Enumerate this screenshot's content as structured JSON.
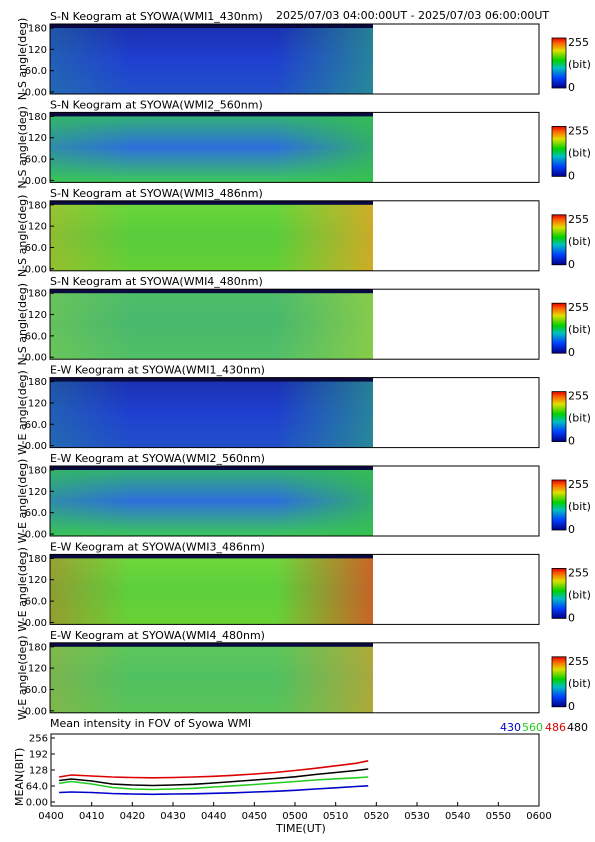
{
  "header": {
    "time_range": "2025/07/03 04:00:00UT - 2025/07/03 06:00:00UT"
  },
  "panels": [
    {
      "title": "S-N Keogram at SYOWA(WMI1_430nm)",
      "ylabel": "N-S angle(deg)",
      "scheme": "430"
    },
    {
      "title": "S-N Keogram at SYOWA(WMI2_560nm)",
      "ylabel": "N-S angle(deg)",
      "scheme": "560"
    },
    {
      "title": "S-N Keogram at SYOWA(WMI3_486nm)",
      "ylabel": "N-S angle(deg)",
      "scheme": "486"
    },
    {
      "title": "S-N Keogram at SYOWA(WMI4_480nm)",
      "ylabel": "N-S angle(deg)",
      "scheme": "480"
    },
    {
      "title": "E-W Keogram at SYOWA(WMI1_430nm)",
      "ylabel": "W-E angle(deg)",
      "scheme": "430"
    },
    {
      "title": "E-W Keogram at SYOWA(WMI2_560nm)",
      "ylabel": "W-E angle(deg)",
      "scheme": "560"
    },
    {
      "title": "E-W Keogram at SYOWA(WMI3_486nm)",
      "ylabel": "W-E angle(deg)",
      "scheme": "486ew"
    },
    {
      "title": "E-W Keogram at SYOWA(WMI4_480nm)",
      "ylabel": "W-E angle(deg)",
      "scheme": "480ew"
    }
  ],
  "keogram_axis": {
    "yticks": [
      "0.00",
      "60.0",
      "120",
      "180"
    ],
    "ylim": [
      0,
      180
    ]
  },
  "colorbar": {
    "max_label": "255",
    "unit_label": "(bit)",
    "min_label": "0"
  },
  "mean_panel": {
    "title": "Mean intensity in FOV of Syowa WMI",
    "ylabel": "MEAN(BIT)",
    "xlabel": "TIME(UT)"
  },
  "chart_data": {
    "type": "line",
    "x_unit": "UT (HHMM)",
    "xlim": [
      "0400",
      "0600"
    ],
    "x_ticks": [
      "0400",
      "0410",
      "0420",
      "0430",
      "0440",
      "0450",
      "0500",
      "0510",
      "0520",
      "0530",
      "0540",
      "0550",
      "0600"
    ],
    "ylim": [
      0,
      256
    ],
    "y_ticks": [
      "0.00",
      "64.0",
      "128",
      "192",
      "256"
    ],
    "x": [
      "0402",
      "0405",
      "0410",
      "0415",
      "0420",
      "0425",
      "0430",
      "0435",
      "0440",
      "0445",
      "0450",
      "0455",
      "0500",
      "0505",
      "0510",
      "0515",
      "0518"
    ],
    "series": [
      {
        "name": "430",
        "color": "#0000cc",
        "values": [
          38,
          40,
          38,
          34,
          32,
          31,
          32,
          33,
          35,
          37,
          40,
          43,
          47,
          52,
          57,
          62,
          65
        ]
      },
      {
        "name": "560",
        "color": "#22cc22",
        "values": [
          75,
          82,
          72,
          58,
          52,
          50,
          52,
          55,
          60,
          65,
          70,
          76,
          82,
          88,
          93,
          97,
          100
        ]
      },
      {
        "name": "486",
        "color": "#dd0000",
        "values": [
          100,
          108,
          104,
          100,
          98,
          97,
          98,
          100,
          103,
          107,
          112,
          118,
          126,
          135,
          145,
          155,
          165
        ]
      },
      {
        "name": "480",
        "color": "#000000",
        "values": [
          86,
          92,
          84,
          72,
          68,
          66,
          68,
          71,
          76,
          82,
          88,
          94,
          101,
          110,
          118,
          126,
          132
        ]
      }
    ]
  },
  "colors": {
    "line_430": "#0000cc",
    "line_560": "#22cc22",
    "line_486": "#dd0000",
    "line_480": "#000000"
  }
}
